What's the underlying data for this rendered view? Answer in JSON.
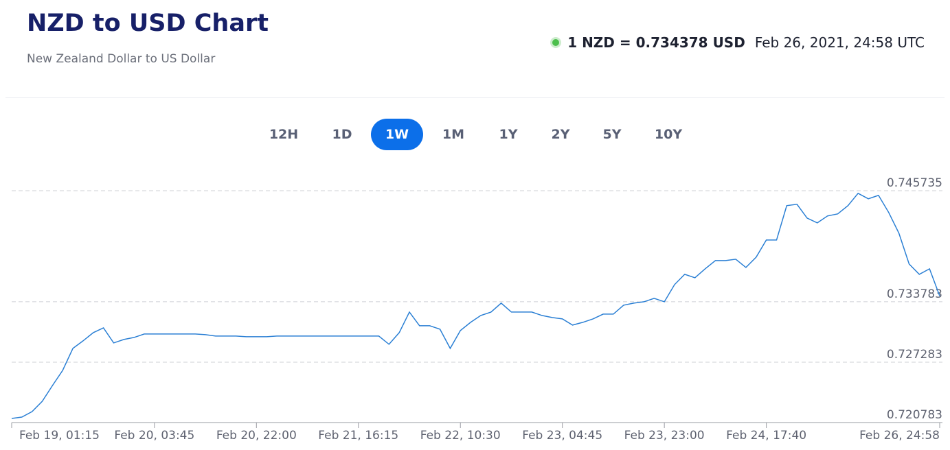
{
  "header": {
    "title": "NZD to USD Chart",
    "subtitle": "New Zealand Dollar to US Dollar",
    "rate": "1 NZD = 0.734378 USD",
    "timestamp": "Feb 26, 2021, 24:58 UTC"
  },
  "tabs": [
    "12H",
    "1D",
    "1W",
    "1M",
    "1Y",
    "2Y",
    "5Y",
    "10Y"
  ],
  "active_tab": "1W",
  "chart_data": {
    "type": "line",
    "categories": [
      "Feb 19, 01:15",
      null,
      null,
      null,
      null,
      null,
      null,
      null,
      null,
      null,
      null,
      null,
      null,
      null,
      "Feb 20, 03:45",
      null,
      null,
      null,
      null,
      null,
      null,
      null,
      null,
      null,
      "Feb 20, 22:00",
      null,
      null,
      null,
      null,
      null,
      null,
      null,
      null,
      null,
      "Feb 21, 16:15",
      null,
      null,
      null,
      null,
      null,
      null,
      null,
      null,
      null,
      "Feb 22, 10:30",
      null,
      null,
      null,
      null,
      null,
      null,
      null,
      null,
      null,
      "Feb 23, 04:45",
      null,
      null,
      null,
      null,
      null,
      null,
      null,
      null,
      null,
      "Feb 23, 23:00",
      null,
      null,
      null,
      null,
      null,
      null,
      null,
      null,
      null,
      "Feb 24, 17:40",
      null,
      null,
      null,
      null,
      null,
      null,
      null,
      null,
      null,
      null,
      null,
      null,
      null,
      null,
      null,
      null,
      "Feb 26, 24:58"
    ],
    "values": [
      0.721226,
      0.721374,
      0.721965,
      0.723073,
      0.724771,
      0.726396,
      0.72876,
      0.729572,
      0.730459,
      0.730976,
      0.729351,
      0.72972,
      0.729942,
      0.730311,
      0.730311,
      0.730311,
      0.730311,
      0.730311,
      0.730311,
      0.730237,
      0.730089,
      0.730089,
      0.730089,
      0.730016,
      0.730016,
      0.730016,
      0.730089,
      0.730089,
      0.730089,
      0.730089,
      0.730089,
      0.730089,
      0.730089,
      0.730089,
      0.730089,
      0.730089,
      0.730089,
      0.729203,
      0.730459,
      0.732674,
      0.731197,
      0.731197,
      0.730828,
      0.72876,
      0.73068,
      0.731567,
      0.732305,
      0.732674,
      0.733635,
      0.732674,
      0.732674,
      0.732674,
      0.732305,
      0.732083,
      0.731936,
      0.731271,
      0.731567,
      0.731936,
      0.732453,
      0.732453,
      0.733413,
      0.733635,
      0.733783,
      0.734152,
      0.733783,
      0.735629,
      0.736737,
      0.736367,
      0.737328,
      0.738214,
      0.738214,
      0.738362,
      0.737475,
      0.738583,
      0.74043,
      0.74043,
      0.744123,
      0.74427,
      0.742793,
      0.742276,
      0.743015,
      0.743237,
      0.744123,
      0.745453,
      0.744862,
      0.745231,
      0.743384,
      0.741168,
      0.737845,
      0.736737,
      0.737328,
      0.7344
    ],
    "color": "#2a7fd4",
    "ylim": [
      0.720783,
      0.745735
    ],
    "yticks": [
      0.720783,
      0.727283,
      0.733783,
      0.745735
    ],
    "grid": true
  }
}
